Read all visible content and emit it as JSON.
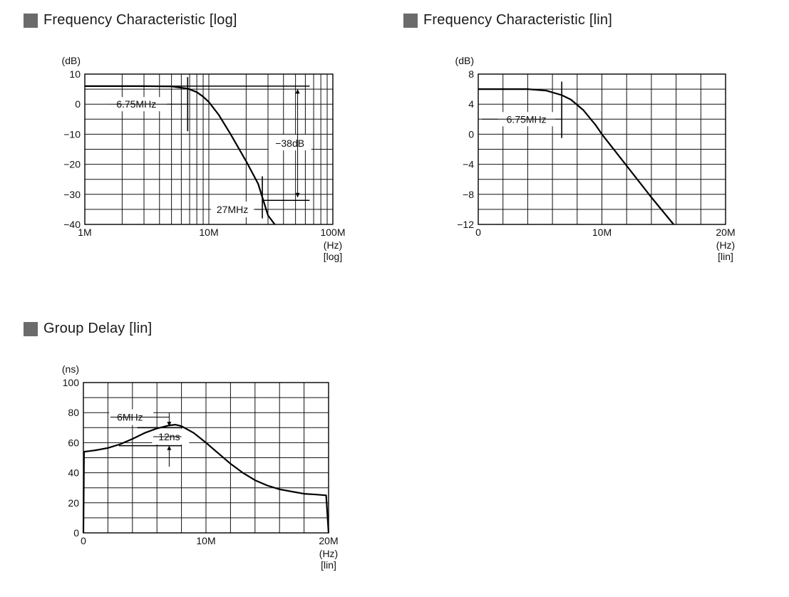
{
  "chart_data": [
    {
      "type": "line",
      "title": "Frequency Characteristic [log]",
      "ylabel": "(dB)",
      "xlabel_unit": "(Hz)",
      "xlabel_scale": "[log]",
      "xscale": "log",
      "xlim": [
        1000000,
        100000000
      ],
      "ylim": [
        -40,
        10
      ],
      "grid": true,
      "x_ticks": [
        {
          "value": 1000000,
          "label": "1M"
        },
        {
          "value": 10000000,
          "label": "10M"
        },
        {
          "value": 100000000,
          "label": "100M"
        }
      ],
      "y_ticks": [
        {
          "value": 10,
          "label": "10"
        },
        {
          "value": 0,
          "label": "0"
        },
        {
          "value": -10,
          "label": "−10"
        },
        {
          "value": -20,
          "label": "−20"
        },
        {
          "value": -30,
          "label": "−30"
        },
        {
          "value": -40,
          "label": "−40"
        }
      ],
      "series": [
        {
          "x": [
            1000000,
            3000000,
            5000000,
            6750000,
            8000000,
            9000000,
            10000000,
            12000000,
            15000000,
            20000000,
            25000000,
            27000000,
            30000000,
            34000000
          ],
          "y": [
            6,
            6,
            5.9,
            5.2,
            4,
            2.5,
            0.7,
            -3.5,
            -10,
            -19,
            -26.5,
            -31,
            -37,
            -40
          ]
        }
      ],
      "reference_lines": [
        {
          "y": 6,
          "x_from": 1000000,
          "x_to": 65000000
        },
        {
          "y": -32,
          "x_from": 27000000,
          "x_to": 65000000
        }
      ],
      "annotations": [
        {
          "text": "6.75MHz",
          "x": 6750000,
          "y": 0
        },
        {
          "text": "−38dB",
          "x": 45000000,
          "y": -13
        },
        {
          "text": "27MHz",
          "x": 27000000,
          "y": -35
        }
      ]
    },
    {
      "type": "line",
      "title": "Frequency Characteristic [lin]",
      "ylabel": "(dB)",
      "xlabel_unit": "(Hz)",
      "xlabel_scale": "[lin]",
      "xscale": "linear",
      "xlim": [
        0,
        20000000
      ],
      "ylim": [
        -12,
        8
      ],
      "grid": true,
      "x_ticks": [
        {
          "value": 0,
          "label": "0"
        },
        {
          "value": 10000000,
          "label": "10M"
        },
        {
          "value": 20000000,
          "label": "20M"
        }
      ],
      "y_ticks": [
        {
          "value": 8,
          "label": "8"
        },
        {
          "value": 4,
          "label": "4"
        },
        {
          "value": 0,
          "label": "0"
        },
        {
          "value": -4,
          "label": "−4"
        },
        {
          "value": -8,
          "label": "−8"
        },
        {
          "value": -12,
          "label": "−12"
        }
      ],
      "series": [
        {
          "x": [
            0,
            4000000,
            5500000,
            6750000,
            7500000,
            8500000,
            9500000,
            10000000,
            12000000,
            14000000,
            15800000
          ],
          "y": [
            6,
            6,
            5.8,
            5.2,
            4.6,
            3.2,
            1.2,
            0,
            -4.2,
            -8.4,
            -12
          ]
        }
      ],
      "annotations": [
        {
          "text": "6.75MHz",
          "x": 6750000,
          "y": 2
        }
      ]
    },
    {
      "type": "line",
      "title": "Group Delay [lin]",
      "ylabel": "(ns)",
      "xlabel_unit": "(Hz)",
      "xlabel_scale": "[lin]",
      "xscale": "linear",
      "xlim": [
        0,
        20000000
      ],
      "ylim": [
        0,
        100
      ],
      "grid": true,
      "x_ticks": [
        {
          "value": 0,
          "label": "0"
        },
        {
          "value": 10000000,
          "label": "10M"
        },
        {
          "value": 20000000,
          "label": "20M"
        }
      ],
      "y_ticks": [
        {
          "value": 100,
          "label": "100"
        },
        {
          "value": 80,
          "label": "80"
        },
        {
          "value": 60,
          "label": "60"
        },
        {
          "value": 40,
          "label": "40"
        },
        {
          "value": 20,
          "label": "20"
        },
        {
          "value": 0,
          "label": "0"
        }
      ],
      "series": [
        {
          "x": [
            0,
            50000,
            1000000,
            2000000,
            3000000,
            4000000,
            5000000,
            6000000,
            7000000,
            7500000,
            8000000,
            9000000,
            10000000,
            11000000,
            12000000,
            13000000,
            14000000,
            15000000,
            16000000,
            17000000,
            18000000,
            19000000,
            19800000,
            20000000
          ],
          "y": [
            0,
            54,
            55,
            56.5,
            59,
            62.5,
            66.5,
            69.5,
            71.5,
            72,
            71,
            66.5,
            60,
            53,
            46,
            40,
            35,
            31.5,
            29,
            27.5,
            26,
            25.5,
            25,
            0
          ]
        }
      ],
      "reference_lines": [
        {
          "y": 70,
          "x_from": 4400000,
          "x_to": 8000000
        },
        {
          "y": 58,
          "x_from": 2900000,
          "x_to": 8000000
        }
      ],
      "annotations": [
        {
          "text": "6MHz",
          "x": 4000000,
          "y": 77
        },
        {
          "text": "12ns",
          "x": 7000000,
          "y": 64
        }
      ]
    }
  ]
}
